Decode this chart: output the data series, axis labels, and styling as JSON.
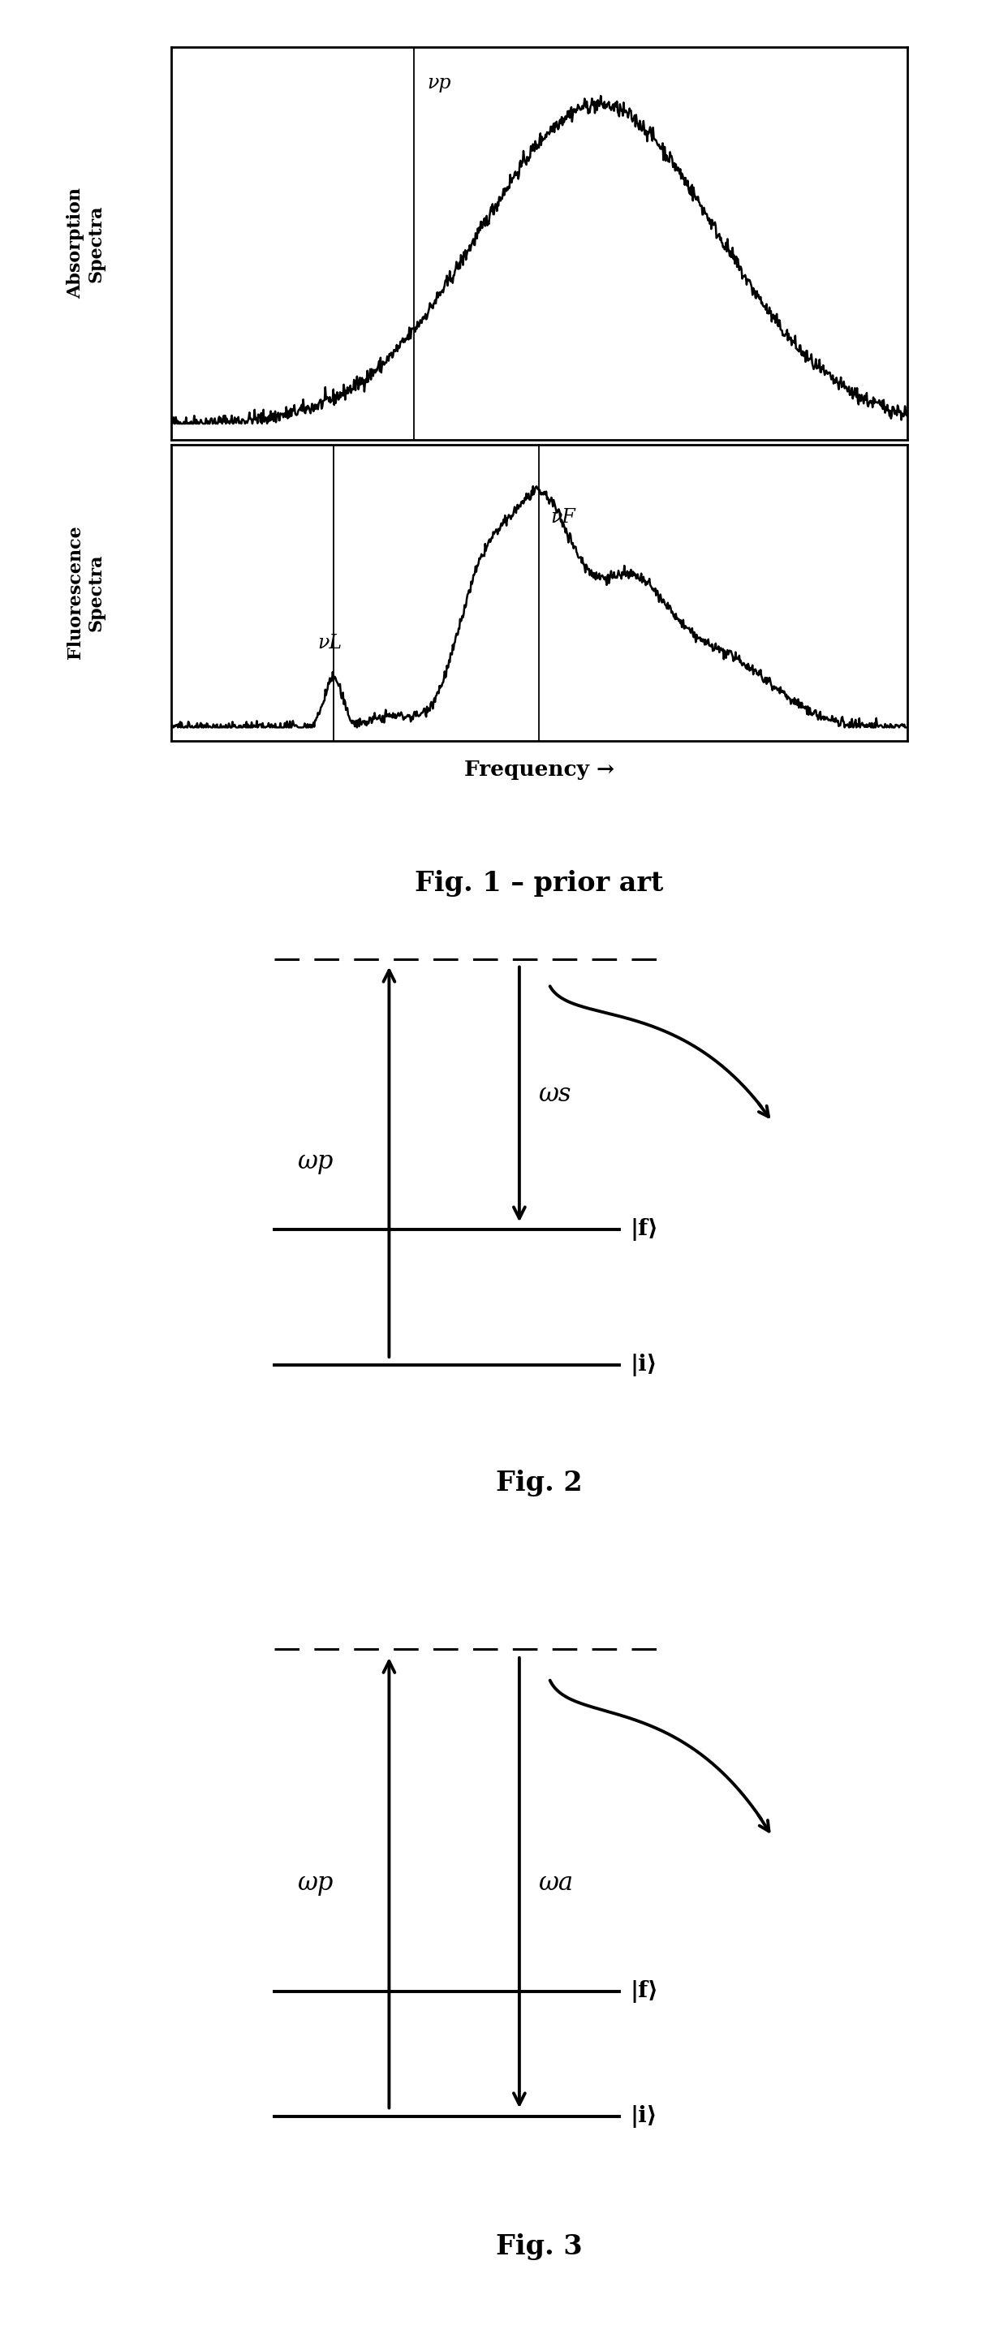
{
  "fig1_title": "Fig. 1 – prior art",
  "fig2_title": "Fig. 2",
  "fig3_title": "Fig. 3",
  "freq_label": "Frequency →",
  "absorption_label": "Absorption\nSpectra",
  "fluorescence_label": "Fluorescence\nSpectra",
  "vp_label": "νp",
  "vl_label": "νL",
  "vf_label": "νF",
  "wp_label": "ωp",
  "ws_label": "ωs",
  "wa_label": "ωa",
  "if_label": "|f⟩",
  "ii_label": "|i⟩",
  "background": "#ffffff",
  "line_color": "#000000"
}
